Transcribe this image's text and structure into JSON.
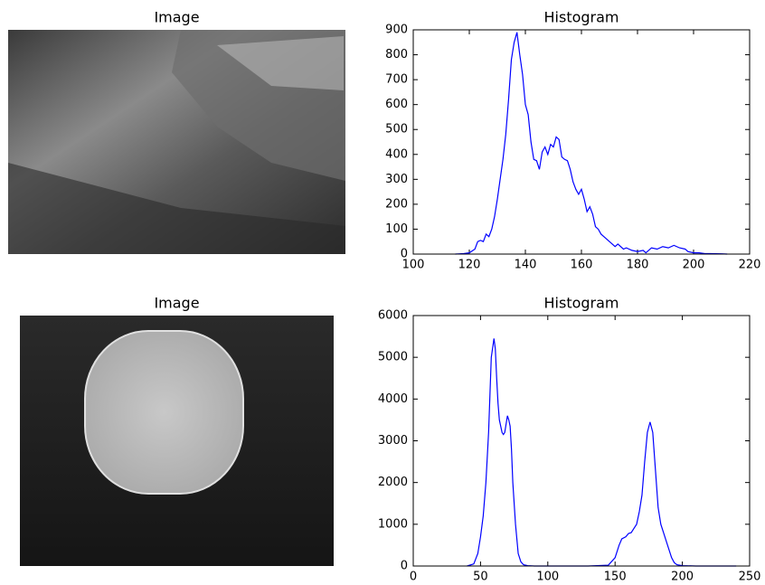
{
  "chart_data": [
    {
      "type": "image",
      "title": "Image"
    },
    {
      "type": "line",
      "title": "Histogram",
      "x": [
        115,
        118,
        120,
        122,
        123,
        124,
        125,
        126,
        127,
        128,
        129,
        130,
        131,
        132,
        133,
        134,
        135,
        136,
        137,
        138,
        139,
        140,
        141,
        142,
        143,
        144,
        145,
        146,
        147,
        148,
        149,
        150,
        151,
        152,
        153,
        154,
        155,
        156,
        157,
        158,
        159,
        160,
        161,
        162,
        163,
        164,
        165,
        166,
        167,
        168,
        169,
        170,
        172,
        173,
        175,
        176,
        178,
        180,
        182,
        183,
        185,
        187,
        189,
        191,
        193,
        195,
        197,
        198,
        200,
        202,
        204,
        206,
        210,
        212
      ],
      "series": [
        {
          "color": "#0000ff",
          "values": [
            0,
            2,
            5,
            20,
            50,
            55,
            50,
            80,
            70,
            100,
            150,
            220,
            300,
            380,
            480,
            620,
            780,
            850,
            890,
            800,
            720,
            600,
            560,
            450,
            380,
            375,
            340,
            410,
            430,
            400,
            440,
            430,
            470,
            460,
            390,
            380,
            375,
            340,
            290,
            260,
            240,
            260,
            220,
            170,
            190,
            160,
            110,
            100,
            80,
            70,
            60,
            50,
            30,
            40,
            20,
            25,
            15,
            10,
            15,
            5,
            25,
            20,
            30,
            25,
            35,
            25,
            20,
            10,
            5,
            5,
            2,
            2,
            1,
            0
          ]
        }
      ],
      "xlim": [
        100,
        220
      ],
      "xticks": [
        100,
        120,
        140,
        160,
        180,
        200,
        220
      ],
      "ylim": [
        0,
        900
      ],
      "yticks": [
        0,
        100,
        200,
        300,
        400,
        500,
        600,
        700,
        800,
        900
      ]
    },
    {
      "type": "image",
      "title": "Image"
    },
    {
      "type": "line",
      "title": "Histogram",
      "x": [
        40,
        45,
        48,
        50,
        52,
        54,
        56,
        58,
        60,
        61,
        62,
        63,
        64,
        66,
        67,
        68,
        69,
        70,
        71,
        72,
        73,
        74,
        76,
        78,
        80,
        82,
        85,
        90,
        100,
        130,
        145,
        150,
        153,
        155,
        158,
        160,
        162,
        164,
        166,
        168,
        170,
        172,
        174,
        176,
        178,
        180,
        182,
        184,
        186,
        188,
        190,
        192,
        194,
        196,
        200,
        210,
        240
      ],
      "series": [
        {
          "color": "#0000ff",
          "values": [
            0,
            50,
            300,
            700,
            1200,
            2000,
            3200,
            5000,
            5450,
            5200,
            4500,
            3900,
            3500,
            3200,
            3150,
            3200,
            3400,
            3600,
            3500,
            3350,
            2800,
            2000,
            1000,
            300,
            100,
            30,
            10,
            0,
            0,
            0,
            20,
            200,
            500,
            650,
            700,
            780,
            800,
            900,
            1000,
            1300,
            1700,
            2500,
            3200,
            3450,
            3200,
            2300,
            1400,
            1000,
            800,
            600,
            400,
            200,
            80,
            30,
            10,
            0,
            0
          ]
        }
      ],
      "xlim": [
        0,
        250
      ],
      "xticks": [
        0,
        50,
        100,
        150,
        200,
        250
      ],
      "ylim": [
        0,
        6000
      ],
      "yticks": [
        0,
        1000,
        2000,
        3000,
        4000,
        5000,
        6000
      ]
    }
  ]
}
